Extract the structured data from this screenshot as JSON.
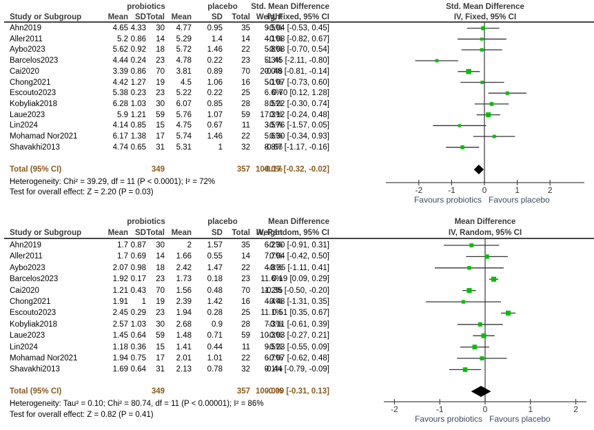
{
  "chart_data": [
    {
      "type": "forest",
      "id": "top",
      "group_headers": {
        "experimental": "probiotics",
        "control": "placebo"
      },
      "columns": [
        "Study or Subgroup",
        "Mean",
        "SD",
        "Total",
        "Mean",
        "SD",
        "Total",
        "Weight"
      ],
      "effect_header": {
        "line1": "Std. Mean Difference",
        "line2": "IV, Fixed, 95% CI"
      },
      "plot_header": {
        "line1": "Std. Mean Difference",
        "line2": "IV, Fixed, 95% CI"
      },
      "studies": [
        {
          "name": "Ahn2019",
          "e_mean": "4.65",
          "e_sd": "4.33",
          "e_total": "30",
          "c_mean": "4.77",
          "c_sd": "0.95",
          "c_total": "35",
          "weight": "9.5%",
          "est": -0.04,
          "lo": -0.53,
          "hi": 0.45,
          "ci_text": "-0.04 [-0.53, 0.45]",
          "w": 9.5
        },
        {
          "name": "Aller2011",
          "e_mean": "5.2",
          "e_sd": "0.86",
          "e_total": "14",
          "c_mean": "5.29",
          "c_sd": "1.4",
          "c_total": "14",
          "weight": "4.1%",
          "est": -0.08,
          "lo": -0.82,
          "hi": 0.67,
          "ci_text": "-0.08 [-0.82, 0.67]",
          "w": 4.1
        },
        {
          "name": "Aybo2023",
          "e_mean": "5.62",
          "e_sd": "0.92",
          "e_total": "18",
          "c_mean": "5.72",
          "c_sd": "1.46",
          "c_total": "22",
          "weight": "5.8%",
          "est": -0.08,
          "lo": -0.7,
          "hi": 0.54,
          "ci_text": "-0.08 [-0.70, 0.54]",
          "w": 5.8
        },
        {
          "name": "Barcelos2023",
          "e_mean": "4.44",
          "e_sd": "0.24",
          "e_total": "23",
          "c_mean": "4.78",
          "c_sd": "0.22",
          "c_total": "23",
          "weight": "5.3%",
          "est": -1.45,
          "lo": -2.11,
          "hi": -0.8,
          "ci_text": "-1.45 [-2.11, -0.80]",
          "w": 5.3
        },
        {
          "name": "Cai2020",
          "e_mean": "3.39",
          "e_sd": "0.86",
          "e_total": "70",
          "c_mean": "3.81",
          "c_sd": "0.89",
          "c_total": "70",
          "weight": "20.0%",
          "est": -0.48,
          "lo": -0.81,
          "hi": -0.14,
          "ci_text": "-0.48 [-0.81, -0.14]",
          "w": 20.0
        },
        {
          "name": "Chong2021",
          "e_mean": "4.42",
          "e_sd": "1.27",
          "e_total": "19",
          "c_mean": "4.5",
          "c_sd": "1.06",
          "c_total": "16",
          "weight": "5.1%",
          "est": -0.07,
          "lo": -0.73,
          "hi": 0.6,
          "ci_text": "-0.07 [-0.73, 0.60]",
          "w": 5.1
        },
        {
          "name": "Escouto2023",
          "e_mean": "5.38",
          "e_sd": "0.23",
          "e_total": "23",
          "c_mean": "5.22",
          "c_sd": "0.22",
          "c_total": "25",
          "weight": "6.6%",
          "est": 0.7,
          "lo": 0.12,
          "hi": 1.28,
          "ci_text": "0.70 [0.12, 1.28]",
          "w": 6.6
        },
        {
          "name": "Kobyliak2018",
          "e_mean": "6.28",
          "e_sd": "1.03",
          "e_total": "30",
          "c_mean": "6.07",
          "c_sd": "0.85",
          "c_total": "28",
          "weight": "8.5%",
          "est": 0.22,
          "lo": -0.3,
          "hi": 0.74,
          "ci_text": "0.22 [-0.30, 0.74]",
          "w": 8.5
        },
        {
          "name": "Laue2023",
          "e_mean": "5.9",
          "e_sd": "1.21",
          "e_total": "59",
          "c_mean": "5.76",
          "c_sd": "1.07",
          "c_total": "59",
          "weight": "17.3%",
          "est": 0.12,
          "lo": -0.24,
          "hi": 0.48,
          "ci_text": "0.12 [-0.24, 0.48]",
          "w": 17.3
        },
        {
          "name": "Lin2024",
          "e_mean": "4.14",
          "e_sd": "0.85",
          "e_total": "15",
          "c_mean": "4.75",
          "c_sd": "0.67",
          "c_total": "11",
          "weight": "3.5%",
          "est": -0.76,
          "lo": -1.57,
          "hi": 0.05,
          "ci_text": "-0.76 [-1.57, 0.05]",
          "w": 3.5
        },
        {
          "name": "Mohamad Nor2021",
          "e_mean": "6.17",
          "e_sd": "1.38",
          "e_total": "17",
          "c_mean": "5.74",
          "c_sd": "1.46",
          "c_total": "22",
          "weight": "5.6%",
          "est": 0.3,
          "lo": -0.34,
          "hi": 0.93,
          "ci_text": "0.30 [-0.34, 0.93]",
          "w": 5.6
        },
        {
          "name": "Shavakhi2013",
          "e_mean": "4.74",
          "e_sd": "0.65",
          "e_total": "31",
          "c_mean": "5.31",
          "c_sd": "1",
          "c_total": "32",
          "weight": "8.8%",
          "est": -0.67,
          "lo": -1.17,
          "hi": -0.16,
          "ci_text": "-0.67 [-1.17, -0.16]",
          "w": 8.8
        }
      ],
      "total": {
        "label": "Total (95% CI)",
        "e_total": "349",
        "c_total": "357",
        "weight": "100.0%",
        "est": -0.17,
        "lo": -0.32,
        "hi": -0.02,
        "ci_text": "-0.17 [-0.32, -0.02]"
      },
      "heterogeneity": "Heterogeneity: Chi² = 39.29, df = 11 (P < 0.0001); I² = 72%",
      "overall_test": "Test for overall effect: Z = 2.20 (P = 0.03)",
      "xlim": [
        -2.0,
        2.0
      ],
      "x_ticks": [
        -2,
        -1,
        0,
        1,
        2
      ],
      "x_tick_labels": [
        "-2",
        "-1",
        "0",
        "1",
        "2"
      ],
      "favours_left": "Favours probiotics",
      "favours_right": "Favours placebo"
    },
    {
      "type": "forest",
      "id": "bottom",
      "group_headers": {
        "experimental": "probiotics",
        "control": "placebo"
      },
      "columns": [
        "Study or Subgroup",
        "Mean",
        "SD",
        "Total",
        "Mean",
        "SD",
        "Total",
        "Weight"
      ],
      "effect_header": {
        "line1": "Mean Difference",
        "line2": "IV, Random, 95% CI"
      },
      "plot_header": {
        "line1": "Mean Difference",
        "line2": "IV, Random, 95% CI"
      },
      "studies": [
        {
          "name": "Ahn2019",
          "e_mean": "1.7",
          "e_sd": "0.87",
          "e_total": "30",
          "c_mean": "2",
          "c_sd": "1.57",
          "c_total": "35",
          "weight": "6.2%",
          "est": -0.3,
          "lo": -0.91,
          "hi": 0.31,
          "ci_text": "-0.30 [-0.91, 0.31]",
          "w": 6.2
        },
        {
          "name": "Aller2011",
          "e_mean": "1.7",
          "e_sd": "0.69",
          "e_total": "14",
          "c_mean": "1.66",
          "c_sd": "0.55",
          "c_total": "14",
          "weight": "7.7%",
          "est": 0.04,
          "lo": -0.42,
          "hi": 0.5,
          "ci_text": "0.04 [-0.42, 0.50]",
          "w": 7.7
        },
        {
          "name": "Aybo2023",
          "e_mean": "2.07",
          "e_sd": "0.98",
          "e_total": "18",
          "c_mean": "2.42",
          "c_sd": "1.47",
          "c_total": "22",
          "weight": "4.8%",
          "est": -0.35,
          "lo": -1.11,
          "hi": 0.41,
          "ci_text": "-0.35 [-1.11, 0.41]",
          "w": 4.8
        },
        {
          "name": "Barcelos2023",
          "e_mean": "1.92",
          "e_sd": "0.17",
          "e_total": "23",
          "c_mean": "1.73",
          "c_sd": "0.18",
          "c_total": "23",
          "weight": "11.6%",
          "est": 0.19,
          "lo": 0.09,
          "hi": 0.29,
          "ci_text": "0.19 [0.09, 0.29]",
          "w": 11.6
        },
        {
          "name": "Cai2020",
          "e_mean": "1.21",
          "e_sd": "0.43",
          "e_total": "70",
          "c_mean": "1.56",
          "c_sd": "0.48",
          "c_total": "70",
          "weight": "11.2%",
          "est": -0.35,
          "lo": -0.5,
          "hi": -0.2,
          "ci_text": "-0.35 [-0.50, -0.20]",
          "w": 11.2
        },
        {
          "name": "Chong2021",
          "e_mean": "1.91",
          "e_sd": "1",
          "e_total": "19",
          "c_mean": "2.39",
          "c_sd": "1.42",
          "c_total": "16",
          "weight": "4.4%",
          "est": -0.48,
          "lo": -1.31,
          "hi": 0.35,
          "ci_text": "-0.48 [-1.31, 0.35]",
          "w": 4.4
        },
        {
          "name": "Escouto2023",
          "e_mean": "2.45",
          "e_sd": "0.29",
          "e_total": "23",
          "c_mean": "1.94",
          "c_sd": "0.28",
          "c_total": "25",
          "weight": "11.1%",
          "est": 0.51,
          "lo": 0.35,
          "hi": 0.67,
          "ci_text": "0.51 [0.35, 0.67]",
          "w": 11.1
        },
        {
          "name": "Kobyliak2018",
          "e_mean": "2.57",
          "e_sd": "1.03",
          "e_total": "30",
          "c_mean": "2.68",
          "c_sd": "0.9",
          "c_total": "28",
          "weight": "7.3%",
          "est": -0.11,
          "lo": -0.61,
          "hi": 0.39,
          "ci_text": "-0.11 [-0.61, 0.39]",
          "w": 7.3
        },
        {
          "name": "Laue2023",
          "e_mean": "1.45",
          "e_sd": "0.64",
          "e_total": "59",
          "c_mean": "1.48",
          "c_sd": "0.71",
          "c_total": "59",
          "weight": "10.3%",
          "est": -0.03,
          "lo": -0.27,
          "hi": 0.21,
          "ci_text": "-0.03 [-0.27, 0.21]",
          "w": 10.3
        },
        {
          "name": "Lin2024",
          "e_mean": "1.18",
          "e_sd": "0.36",
          "e_total": "15",
          "c_mean": "1.41",
          "c_sd": "0.44",
          "c_total": "11",
          "weight": "9.5%",
          "est": -0.23,
          "lo": -0.55,
          "hi": 0.09,
          "ci_text": "-0.23 [-0.55, 0.09]",
          "w": 9.5
        },
        {
          "name": "Mohamad Nor2021",
          "e_mean": "1.94",
          "e_sd": "0.75",
          "e_total": "17",
          "c_mean": "2.01",
          "c_sd": "1.01",
          "c_total": "22",
          "weight": "6.7%",
          "est": -0.07,
          "lo": -0.62,
          "hi": 0.48,
          "ci_text": "-0.07 [-0.62, 0.48]",
          "w": 6.7
        },
        {
          "name": "Shavakhi2013",
          "e_mean": "1.69",
          "e_sd": "0.64",
          "e_total": "31",
          "c_mean": "2.13",
          "c_sd": "0.78",
          "c_total": "32",
          "weight": "9.1%",
          "est": -0.44,
          "lo": -0.79,
          "hi": -0.09,
          "ci_text": "-0.44 [-0.79, -0.09]",
          "w": 9.1
        }
      ],
      "total": {
        "label": "Total (95% CI)",
        "e_total": "349",
        "c_total": "357",
        "weight": "100.0%",
        "est": -0.09,
        "lo": -0.31,
        "hi": 0.13,
        "ci_text": "-0.09 [-0.31, 0.13]"
      },
      "heterogeneity": "Heterogeneity: Tau² = 0.10; Chi² = 80.74, df = 11 (P < 0.00001); I² = 86%",
      "overall_test": "Test for overall effect: Z = 0.82 (P = 0.41)",
      "xlim": [
        -2.0,
        2.0
      ],
      "x_ticks": [
        -2,
        -1,
        0,
        1,
        2
      ],
      "x_tick_labels": [
        "-2",
        "-1",
        "0",
        "1",
        "2"
      ],
      "favours_left": "Favours probiotics",
      "favours_right": "Favours placebo"
    }
  ],
  "colors": {
    "square": "#00c000",
    "diamond": "#000000",
    "ci_line": "#333333",
    "header_text": "#3b3b3b",
    "total_text": "#8a5a1e",
    "favours_text": "#3d4a66"
  }
}
